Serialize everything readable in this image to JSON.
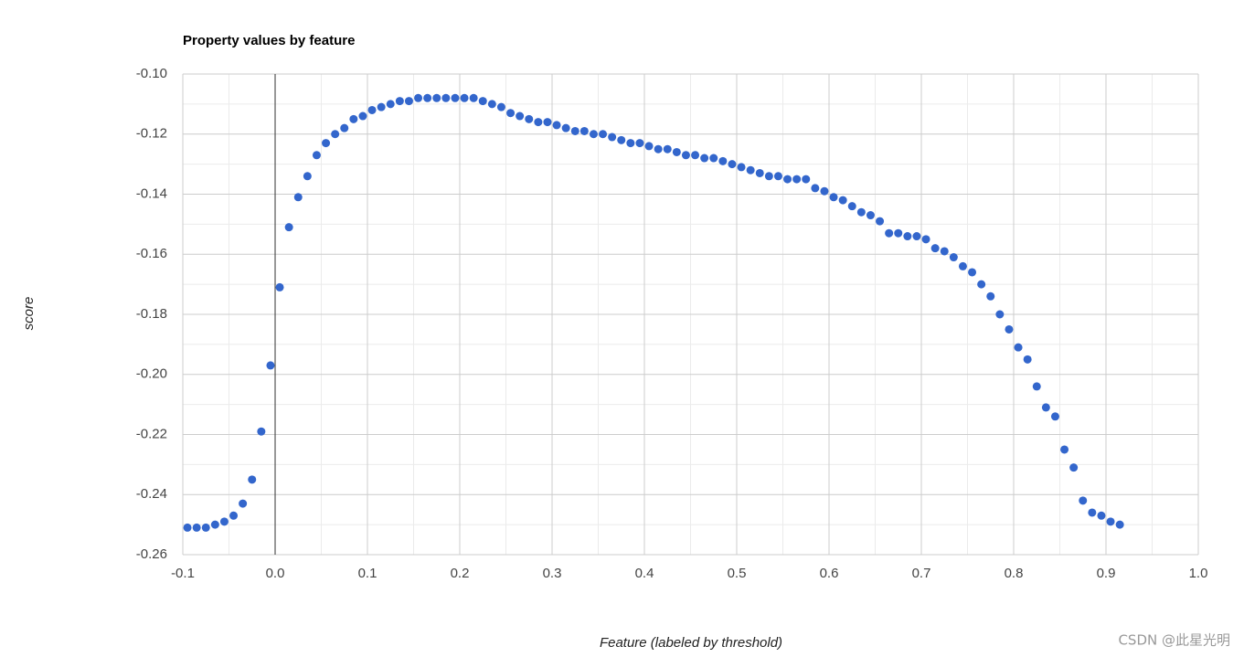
{
  "chart_data": {
    "type": "scatter",
    "title": "Property values by feature",
    "x_label": "Feature (labeled by threshold)",
    "y_label": "score",
    "watermark": "CSDN @此星光明",
    "color": "#3366cc",
    "grid": true,
    "minor_grid": true,
    "xlim": [
      -0.1,
      1.0
    ],
    "ylim": [
      -0.26,
      -0.1
    ],
    "xticks": [
      -0.1,
      {
        "value": 0,
        "label": "0.0"
      },
      0.1,
      0.2,
      0.3,
      0.4,
      0.5,
      0.6,
      0.7,
      0.8,
      0.9,
      {
        "value": 1,
        "label": "1.0"
      }
    ],
    "yticks": [
      {
        "value": -0.1,
        "label": "-0.10"
      },
      -0.12,
      -0.14,
      -0.16,
      -0.18,
      {
        "value": -0.2,
        "label": "-0.20"
      },
      -0.22,
      -0.24,
      -0.26
    ],
    "x": [
      -0.095,
      -0.085,
      -0.075,
      -0.065,
      -0.055,
      -0.045,
      -0.035,
      -0.025,
      -0.015,
      -0.005,
      0.005,
      0.015,
      0.025,
      0.035,
      0.045,
      0.055,
      0.065,
      0.075,
      0.085,
      0.095,
      0.105,
      0.115,
      0.125,
      0.135,
      0.145,
      0.155,
      0.165,
      0.175,
      0.185,
      0.195,
      0.205,
      0.215,
      0.225,
      0.235,
      0.245,
      0.255,
      0.265,
      0.275,
      0.285,
      0.295,
      0.305,
      0.315,
      0.325,
      0.335,
      0.345,
      0.355,
      0.365,
      0.375,
      0.385,
      0.395,
      0.405,
      0.415,
      0.425,
      0.435,
      0.445,
      0.455,
      0.465,
      0.475,
      0.485,
      0.495,
      0.505,
      0.515,
      0.525,
      0.535,
      0.545,
      0.555,
      0.565,
      0.575,
      0.585,
      0.595,
      0.605,
      0.615,
      0.625,
      0.635,
      0.645,
      0.655,
      0.665,
      0.675,
      0.685,
      0.695,
      0.705,
      0.715,
      0.725,
      0.735,
      0.745,
      0.755,
      0.765,
      0.775,
      0.785,
      0.795,
      0.805,
      0.815,
      0.825,
      0.835,
      0.845,
      0.855,
      0.865,
      0.875,
      0.885,
      0.895,
      0.905,
      0.915
    ],
    "values": [
      -0.251,
      -0.251,
      -0.251,
      -0.25,
      -0.249,
      -0.247,
      -0.243,
      -0.235,
      -0.219,
      -0.197,
      -0.171,
      -0.151,
      -0.141,
      -0.134,
      -0.127,
      -0.123,
      -0.12,
      -0.118,
      -0.115,
      -0.114,
      -0.112,
      -0.111,
      -0.11,
      -0.109,
      -0.109,
      -0.108,
      -0.108,
      -0.108,
      -0.108,
      -0.108,
      -0.108,
      -0.108,
      -0.109,
      -0.11,
      -0.111,
      -0.113,
      -0.114,
      -0.115,
      -0.116,
      -0.116,
      -0.117,
      -0.118,
      -0.119,
      -0.119,
      -0.12,
      -0.12,
      -0.121,
      -0.122,
      -0.123,
      -0.123,
      -0.124,
      -0.125,
      -0.125,
      -0.126,
      -0.127,
      -0.127,
      -0.128,
      -0.128,
      -0.129,
      -0.13,
      -0.131,
      -0.132,
      -0.133,
      -0.134,
      -0.134,
      -0.135,
      -0.135,
      -0.135,
      -0.138,
      -0.139,
      -0.141,
      -0.142,
      -0.144,
      -0.146,
      -0.147,
      -0.149,
      -0.153,
      -0.153,
      -0.154,
      -0.154,
      -0.155,
      -0.158,
      -0.159,
      -0.161,
      -0.164,
      -0.166,
      -0.17,
      -0.174,
      -0.18,
      -0.185,
      -0.191,
      -0.195,
      -0.204,
      -0.211,
      -0.214,
      -0.225,
      -0.231,
      -0.242,
      -0.246,
      -0.247,
      -0.249,
      -0.25
    ]
  }
}
